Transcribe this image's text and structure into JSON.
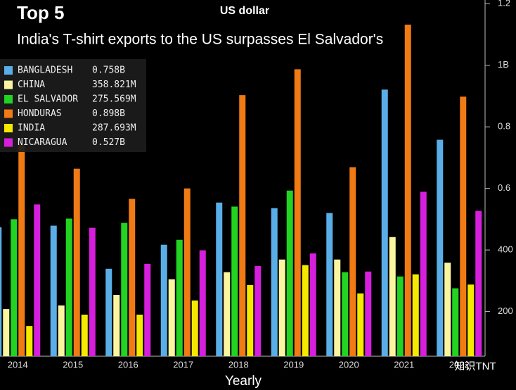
{
  "chart_data": {
    "type": "bar",
    "title": "Top 5",
    "unit_title": "US dollar",
    "subtitle": "India's T-shirt exports to the US surpasses El Salvador's",
    "x_label": "Yearly",
    "watermark": "知识TNT",
    "categories": [
      "2014",
      "2015",
      "2016",
      "2017",
      "2018",
      "2019",
      "2020",
      "2021",
      "2022"
    ],
    "series": [
      {
        "name": "BANGLADESH",
        "color": "#5aaee8",
        "values": [
          474,
          479,
          339,
          417,
          554,
          536,
          520,
          921,
          758
        ],
        "value_labels": [
          null,
          null,
          null,
          null,
          null,
          null,
          null,
          null,
          "0.758B"
        ]
      },
      {
        "name": "CHINA",
        "color": "#fbf5a0",
        "values": [
          208,
          220,
          254,
          305,
          328,
          369,
          369,
          442,
          358.821
        ],
        "value_labels": [
          null,
          null,
          null,
          null,
          null,
          null,
          null,
          null,
          "358.821M"
        ]
      },
      {
        "name": "EL SALVADOR",
        "color": "#22d322",
        "values": [
          500,
          502,
          488,
          433,
          541,
          593,
          328,
          314,
          275.569
        ],
        "value_labels": [
          null,
          null,
          null,
          null,
          null,
          null,
          null,
          null,
          "275.569M"
        ]
      },
      {
        "name": "HONDURAS",
        "color": "#f07a14",
        "values": [
          742,
          664,
          566,
          600,
          903,
          987,
          669,
          1132,
          898
        ],
        "value_labels": [
          null,
          null,
          null,
          null,
          null,
          null,
          null,
          null,
          "0.898B"
        ]
      },
      {
        "name": "INDIA",
        "color": "#f5e900",
        "values": [
          153,
          190,
          190,
          236,
          286,
          351,
          259,
          321,
          287.693
        ],
        "value_labels": [
          null,
          null,
          null,
          null,
          null,
          null,
          null,
          null,
          "287.693M"
        ]
      },
      {
        "name": "NICARAGUA",
        "color": "#d61fdc",
        "values": [
          548,
          472,
          355,
          399,
          348,
          389,
          330,
          589,
          527
        ],
        "value_labels": [
          null,
          null,
          null,
          null,
          null,
          null,
          null,
          null,
          "0.527B"
        ]
      }
    ],
    "ylim": [
      55,
      1212
    ],
    "yticks": [
      200,
      400,
      {
        "value": 600,
        "label": "0.6"
      },
      {
        "value": 800,
        "label": "0.8"
      },
      {
        "value": 1000,
        "label": "1B"
      },
      {
        "value": 1200,
        "label": "1.2"
      }
    ],
    "legend": "upper left"
  }
}
